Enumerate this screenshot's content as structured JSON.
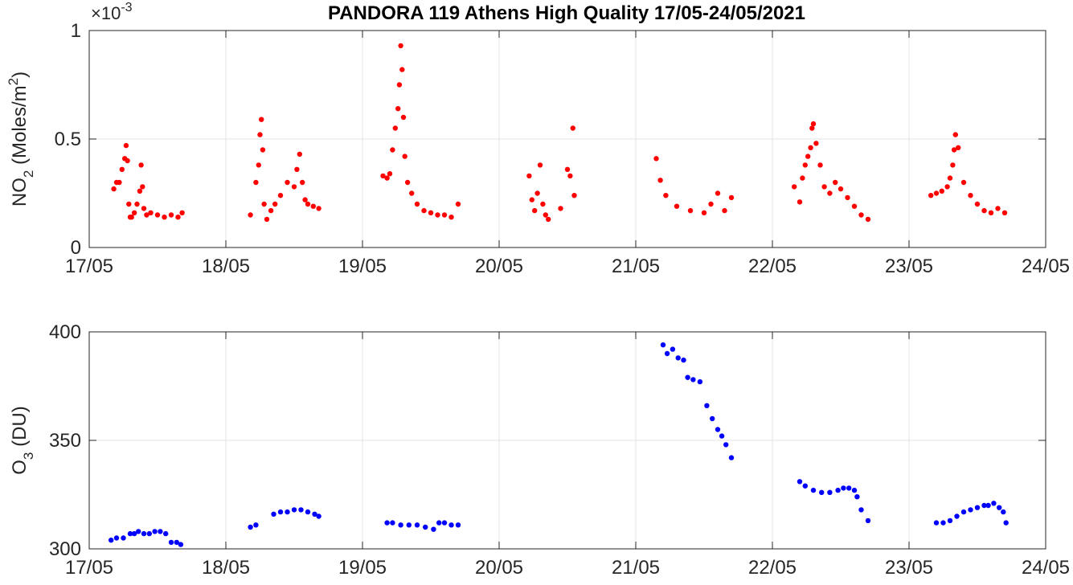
{
  "title": "PANDORA 119 Athens High Quality 17/05-24/05/2021",
  "colors": {
    "no2": "#ff0000",
    "o3": "#0000ff",
    "grid": "#e3e3e3",
    "axis": "#262626"
  },
  "chart_data": [
    {
      "type": "scatter",
      "name": "no2",
      "ylabel_main": "NO",
      "ylabel_sub": "2",
      "ylabel_rest": " (Moles/m",
      "ylabel_sup": "2",
      "ylabel_end": ")",
      "exponent_prefix": "×10",
      "exponent_power": "-3",
      "xlim": [
        0,
        7
      ],
      "ylim": [
        0,
        1
      ],
      "xticks": [
        0,
        1,
        2,
        3,
        4,
        5,
        6,
        7
      ],
      "xtick_labels": [
        "17/05",
        "18/05",
        "19/05",
        "20/05",
        "21/05",
        "22/05",
        "23/05",
        "24/05"
      ],
      "yticks": [
        0,
        0.5,
        1
      ],
      "ytick_labels": [
        "0",
        "0.5",
        "1"
      ],
      "grid": true,
      "marker_color": "#ff0000",
      "x": [
        0.18,
        0.2,
        0.22,
        0.24,
        0.26,
        0.27,
        0.28,
        0.29,
        0.3,
        0.31,
        0.33,
        0.35,
        0.37,
        0.38,
        0.39,
        0.4,
        0.42,
        0.45,
        0.5,
        0.55,
        0.6,
        0.65,
        0.68,
        1.18,
        1.22,
        1.24,
        1.25,
        1.26,
        1.27,
        1.28,
        1.3,
        1.33,
        1.36,
        1.4,
        1.45,
        1.5,
        1.52,
        1.54,
        1.56,
        1.58,
        1.6,
        1.64,
        1.68,
        2.15,
        2.18,
        2.2,
        2.22,
        2.24,
        2.26,
        2.27,
        2.28,
        2.29,
        2.3,
        2.31,
        2.33,
        2.36,
        2.4,
        2.45,
        2.5,
        2.55,
        2.6,
        2.65,
        2.7,
        3.22,
        3.24,
        3.26,
        3.28,
        3.3,
        3.32,
        3.34,
        3.36,
        3.45,
        3.5,
        3.52,
        3.54,
        3.55,
        4.15,
        4.18,
        4.22,
        4.3,
        4.4,
        4.5,
        4.55,
        4.6,
        4.65,
        4.7,
        5.16,
        5.2,
        5.22,
        5.24,
        5.26,
        5.28,
        5.29,
        5.3,
        5.32,
        5.35,
        5.38,
        5.42,
        5.46,
        5.5,
        5.55,
        5.6,
        5.65,
        5.7,
        6.16,
        6.2,
        6.24,
        6.28,
        6.3,
        6.32,
        6.33,
        6.34,
        6.36,
        6.4,
        6.45,
        6.5,
        6.55,
        6.6,
        6.65,
        6.7
      ],
      "y": [
        0.27,
        0.3,
        0.3,
        0.36,
        0.41,
        0.47,
        0.4,
        0.2,
        0.14,
        0.14,
        0.16,
        0.2,
        0.26,
        0.38,
        0.28,
        0.18,
        0.15,
        0.16,
        0.15,
        0.14,
        0.15,
        0.14,
        0.16,
        0.15,
        0.3,
        0.38,
        0.52,
        0.59,
        0.45,
        0.2,
        0.13,
        0.17,
        0.2,
        0.24,
        0.3,
        0.28,
        0.36,
        0.43,
        0.3,
        0.22,
        0.2,
        0.19,
        0.18,
        0.33,
        0.32,
        0.34,
        0.45,
        0.55,
        0.64,
        0.75,
        0.93,
        0.82,
        0.6,
        0.42,
        0.3,
        0.25,
        0.2,
        0.17,
        0.16,
        0.15,
        0.15,
        0.14,
        0.2,
        0.33,
        0.22,
        0.17,
        0.25,
        0.38,
        0.2,
        0.15,
        0.13,
        0.18,
        0.36,
        0.33,
        0.55,
        0.24,
        0.41,
        0.31,
        0.24,
        0.19,
        0.17,
        0.16,
        0.2,
        0.25,
        0.17,
        0.23,
        0.28,
        0.21,
        0.32,
        0.38,
        0.42,
        0.46,
        0.55,
        0.57,
        0.48,
        0.38,
        0.28,
        0.25,
        0.3,
        0.27,
        0.23,
        0.19,
        0.15,
        0.13,
        0.24,
        0.25,
        0.26,
        0.28,
        0.32,
        0.38,
        0.45,
        0.52,
        0.46,
        0.3,
        0.24,
        0.2,
        0.17,
        0.16,
        0.18,
        0.16
      ]
    },
    {
      "type": "scatter",
      "name": "o3",
      "ylabel_main": "O",
      "ylabel_sub": "3",
      "ylabel_rest": " (DU)",
      "xlim": [
        0,
        7
      ],
      "ylim": [
        300,
        400
      ],
      "xticks": [
        0,
        1,
        2,
        3,
        4,
        5,
        6,
        7
      ],
      "xtick_labels": [
        "17/05",
        "18/05",
        "19/05",
        "20/05",
        "21/05",
        "22/05",
        "23/05",
        "24/05"
      ],
      "yticks": [
        300,
        350,
        400
      ],
      "ytick_labels": [
        "300",
        "350",
        "400"
      ],
      "grid": true,
      "marker_color": "#0000ff",
      "x": [
        0.16,
        0.2,
        0.25,
        0.3,
        0.33,
        0.36,
        0.4,
        0.44,
        0.48,
        0.52,
        0.56,
        0.6,
        0.64,
        0.67,
        1.18,
        1.22,
        1.35,
        1.4,
        1.45,
        1.5,
        1.55,
        1.6,
        1.65,
        1.68,
        2.18,
        2.22,
        2.28,
        2.34,
        2.4,
        2.46,
        2.52,
        2.56,
        2.6,
        2.65,
        2.7,
        4.2,
        4.23,
        4.27,
        4.31,
        4.35,
        4.38,
        4.42,
        4.47,
        4.52,
        4.56,
        4.6,
        4.63,
        4.66,
        4.7,
        5.2,
        5.24,
        5.3,
        5.36,
        5.42,
        5.48,
        5.52,
        5.56,
        5.6,
        5.62,
        5.65,
        5.7,
        6.2,
        6.25,
        6.3,
        6.35,
        6.4,
        6.45,
        6.5,
        6.55,
        6.58,
        6.62,
        6.66,
        6.69,
        6.71
      ],
      "y": [
        304,
        305,
        305,
        307,
        307,
        308,
        307,
        307,
        308,
        308,
        307,
        303,
        303,
        302,
        310,
        311,
        316,
        317,
        317,
        318,
        318,
        317,
        316,
        315,
        312,
        312,
        311,
        311,
        311,
        310,
        309,
        312,
        312,
        311,
        311,
        394,
        390,
        392,
        388,
        387,
        379,
        378,
        377,
        366,
        360,
        355,
        352,
        348,
        342,
        331,
        329,
        327,
        326,
        326,
        327,
        328,
        328,
        327,
        324,
        318,
        313,
        312,
        312,
        313,
        315,
        317,
        318,
        319,
        320,
        320,
        321,
        319,
        317,
        312
      ]
    }
  ]
}
